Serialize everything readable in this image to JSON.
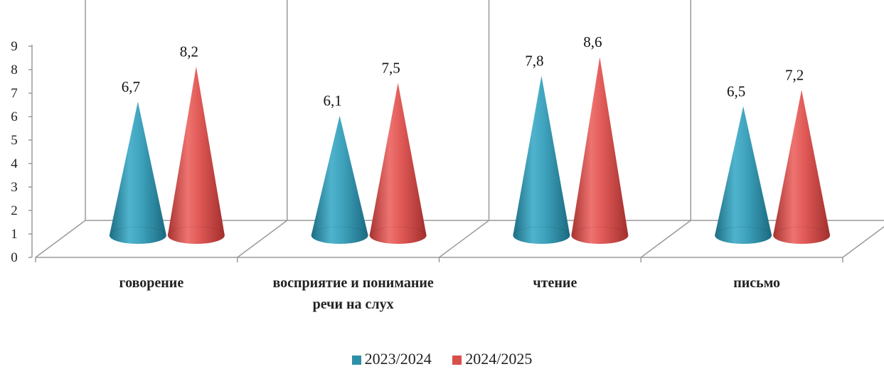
{
  "chart_data": {
    "type": "bar",
    "categories": [
      "говорение",
      "восприятие и понимание речи на слух",
      "чтение",
      "письмо"
    ],
    "series": [
      {
        "name": "2023/2024",
        "values": [
          6.7,
          6.1,
          7.8,
          6.5
        ],
        "labels": [
          "6,7",
          "6,1",
          "7,8",
          "6,5"
        ],
        "color": "#2E8FA8"
      },
      {
        "name": "2024/2025",
        "values": [
          8.2,
          7.5,
          8.6,
          7.2
        ],
        "labels": [
          "8,2",
          "7,5",
          "8,6",
          "7,2"
        ],
        "color": "#D94F4C"
      }
    ],
    "title": "",
    "xlabel": "",
    "ylabel": "",
    "ylim": [
      0,
      9
    ],
    "yticks": [
      "0",
      "1",
      "2",
      "3",
      "4",
      "5",
      "6",
      "7",
      "8",
      "9"
    ],
    "grid": false,
    "legend": "bottom",
    "shape": "cone"
  }
}
